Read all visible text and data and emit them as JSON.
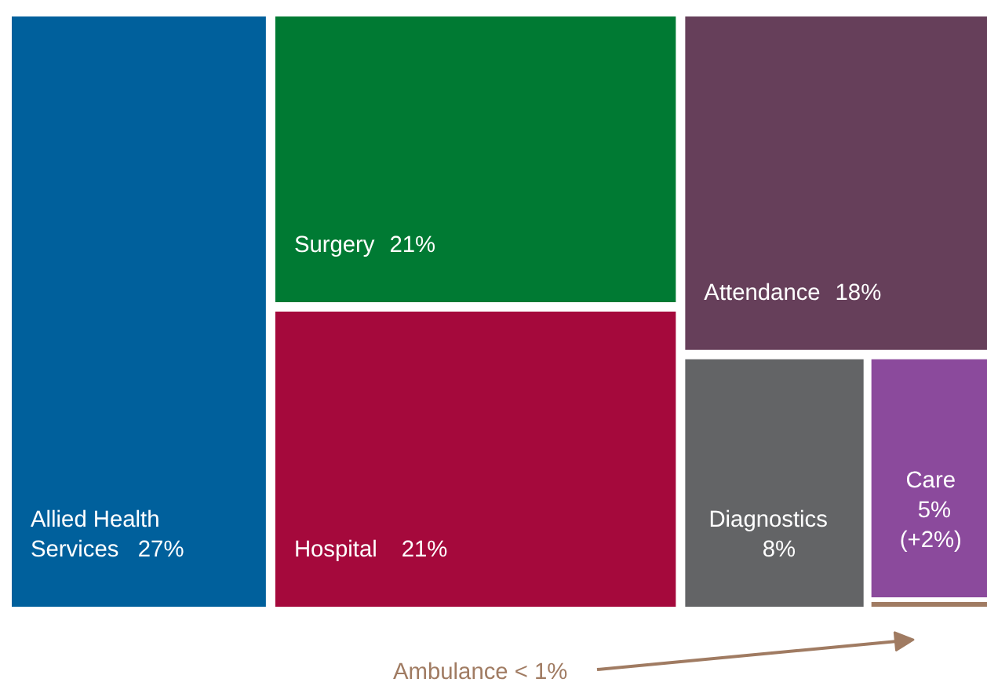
{
  "chart_data": {
    "type": "other",
    "categories": [
      "Allied Health Services",
      "Surgery",
      "Hospital",
      "Attendance",
      "Diagnostics",
      "Care",
      "Ambulance"
    ],
    "values": [
      27,
      21,
      21,
      18,
      8,
      5,
      null
    ],
    "value_labels": [
      "27%",
      "21%",
      "21%",
      "18%",
      "8%",
      "5% (+2%)",
      "< 1%"
    ],
    "colors": [
      "#00609c",
      "#007a33",
      "#a5093c",
      "#663f5a",
      "#636466",
      "#8b4a9c",
      "#a07b62"
    ]
  }
}
